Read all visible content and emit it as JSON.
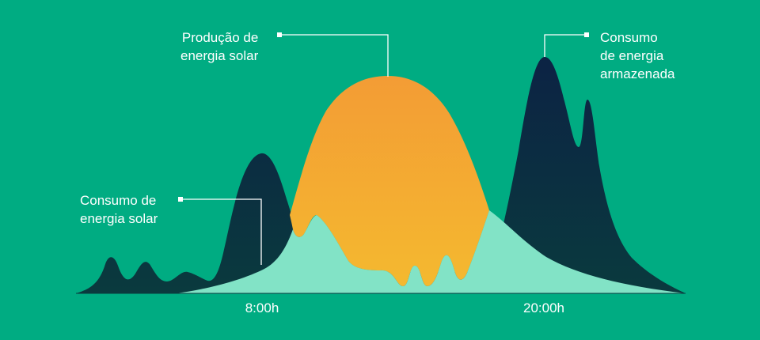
{
  "chart_data": {
    "type": "area",
    "title": "",
    "xlabel": "",
    "ylabel": "",
    "x_ticks": [
      "8:00h",
      "20:00h"
    ],
    "series": [
      {
        "name": "Consumo de energia armazenada",
        "color": "#0A3A3E",
        "gradient_top": "#0C2344",
        "x": [
          0,
          1,
          2,
          3,
          4,
          5,
          6,
          7,
          7.5,
          8,
          8.5,
          9,
          10,
          11,
          12,
          13,
          14,
          15,
          16,
          17,
          18,
          19,
          19.5,
          20,
          20.5,
          21,
          21.5,
          22,
          23,
          24
        ],
        "values": [
          0,
          0.16,
          0.05,
          0.14,
          0.04,
          0.1,
          0.02,
          0.55,
          0.62,
          0.52,
          0.25,
          0.1,
          0.03,
          0,
          0,
          0,
          0,
          0,
          0.05,
          0.2,
          0.42,
          0.82,
          1.0,
          0.82,
          0.68,
          0.8,
          0.5,
          0.3,
          0.1,
          0
        ]
      },
      {
        "name": "Produção de energia solar",
        "color": "#F6A033",
        "gradient_bottom": "#F5B330",
        "x": [
          9.5,
          10,
          11,
          12,
          13,
          14,
          15,
          16,
          17,
          17.8
        ],
        "values": [
          0.2,
          0.5,
          0.8,
          0.95,
          1.0,
          0.98,
          0.9,
          0.65,
          0.3,
          0.2
        ]
      },
      {
        "name": "Consumo de energia solar",
        "color": "#82E3C6",
        "x": [
          4,
          6,
          8,
          9,
          9.5,
          10.5,
          11,
          12,
          13,
          14,
          15,
          16,
          17,
          18,
          19,
          20,
          21,
          22,
          23,
          24
        ],
        "values": [
          0,
          0.03,
          0.12,
          0.25,
          0.36,
          0.22,
          0.2,
          0.15,
          0.12,
          0.1,
          0.12,
          0.2,
          0.32,
          0.38,
          0.3,
          0.2,
          0.12,
          0.06,
          0.02,
          0
        ]
      }
    ],
    "annotations": [
      {
        "text": "Produção de\nenergia solar",
        "target": "Produção de energia solar"
      },
      {
        "text": "Consumo de\nenergia solar",
        "target": "Consumo de energia solar"
      },
      {
        "text": "Consumo\nde energia\narmazenada",
        "target": "Consumo de energia armazenada"
      }
    ],
    "grid": false,
    "legend": "none"
  }
}
